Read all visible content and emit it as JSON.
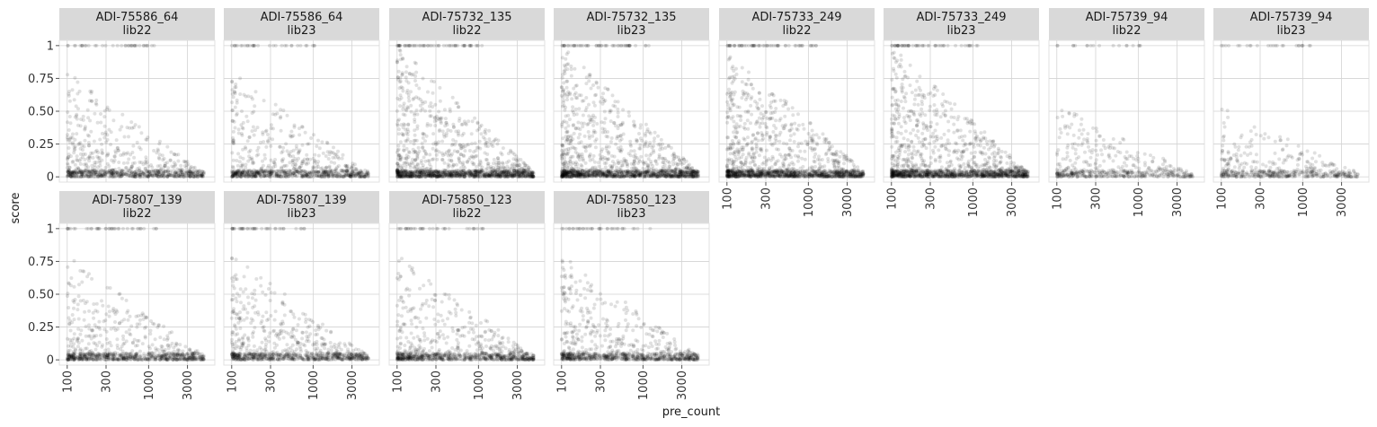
{
  "chart_data": {
    "type": "scatter",
    "xlabel": "pre_count",
    "ylabel": "score",
    "x_scale": "log10",
    "xlim": [
      80,
      6500
    ],
    "ylim": [
      -0.04,
      1.04
    ],
    "x_ticks": [
      {
        "value": 100,
        "label": "100"
      },
      {
        "value": 300,
        "label": "300"
      },
      {
        "value": 1000,
        "label": "1000"
      },
      {
        "value": 3000,
        "label": "3000"
      }
    ],
    "y_ticks": [
      {
        "value": 0,
        "label": "0"
      },
      {
        "value": 0.25,
        "label": "0.25"
      },
      {
        "value": 0.5,
        "label": "0.50"
      },
      {
        "value": 0.75,
        "label": "0.75"
      },
      {
        "value": 1,
        "label": "1"
      }
    ],
    "point_color": "#000000",
    "point_alpha": 0.12,
    "strip_color": "#d9d9d9",
    "grid": true,
    "grid_color": "#d3d3d3",
    "panels": [
      {
        "strip": [
          "ADI-75586_64",
          "lib22"
        ],
        "density": "medium"
      },
      {
        "strip": [
          "ADI-75586_64",
          "lib23"
        ],
        "density": "medium"
      },
      {
        "strip": [
          "ADI-75732_135",
          "lib22"
        ],
        "density": "high"
      },
      {
        "strip": [
          "ADI-75732_135",
          "lib23"
        ],
        "density": "high"
      },
      {
        "strip": [
          "ADI-75733_249",
          "lib22"
        ],
        "density": "high"
      },
      {
        "strip": [
          "ADI-75733_249",
          "lib23"
        ],
        "density": "high"
      },
      {
        "strip": [
          "ADI-75739_94",
          "lib22"
        ],
        "density": "low"
      },
      {
        "strip": [
          "ADI-75739_94",
          "lib23"
        ],
        "density": "low"
      },
      {
        "strip": [
          "ADI-75807_139",
          "lib22"
        ],
        "density": "medium"
      },
      {
        "strip": [
          "ADI-75807_139",
          "lib23"
        ],
        "density": "medium"
      },
      {
        "strip": [
          "ADI-75850_123",
          "lib22"
        ],
        "density": "medium"
      },
      {
        "strip": [
          "ADI-75850_123",
          "lib23"
        ],
        "density": "medium"
      }
    ]
  }
}
